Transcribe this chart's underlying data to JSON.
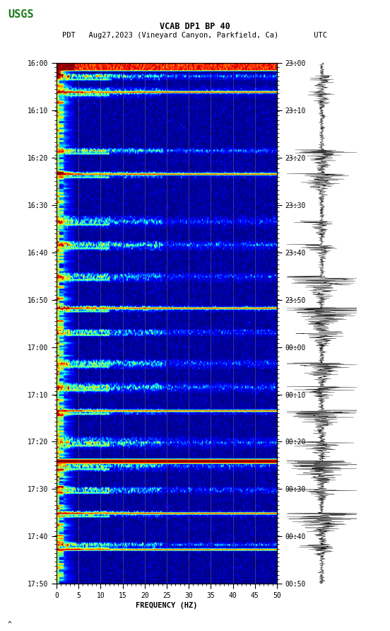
{
  "title_line1": "VCAB DP1 BP 40",
  "title_line2": "PDT   Aug27,2023 (Vineyard Canyon, Parkfield, Ca)        UTC",
  "xlabel": "FREQUENCY (HZ)",
  "freq_min": 0,
  "freq_max": 50,
  "freq_ticks": [
    0,
    5,
    10,
    15,
    20,
    25,
    30,
    35,
    40,
    45,
    50
  ],
  "left_time_labels": [
    "16:00",
    "16:10",
    "16:20",
    "16:30",
    "16:40",
    "16:50",
    "17:00",
    "17:10",
    "17:20",
    "17:30",
    "17:40",
    "17:50"
  ],
  "right_time_labels": [
    "23:00",
    "23:10",
    "23:20",
    "23:30",
    "23:40",
    "23:50",
    "00:00",
    "00:10",
    "00:20",
    "00:30",
    "00:40",
    "00:50"
  ],
  "background_color": "#ffffff",
  "usgs_color": "#1a7a1a",
  "grid_color": "#6B5B3E",
  "fig_width": 5.52,
  "fig_height": 8.92
}
